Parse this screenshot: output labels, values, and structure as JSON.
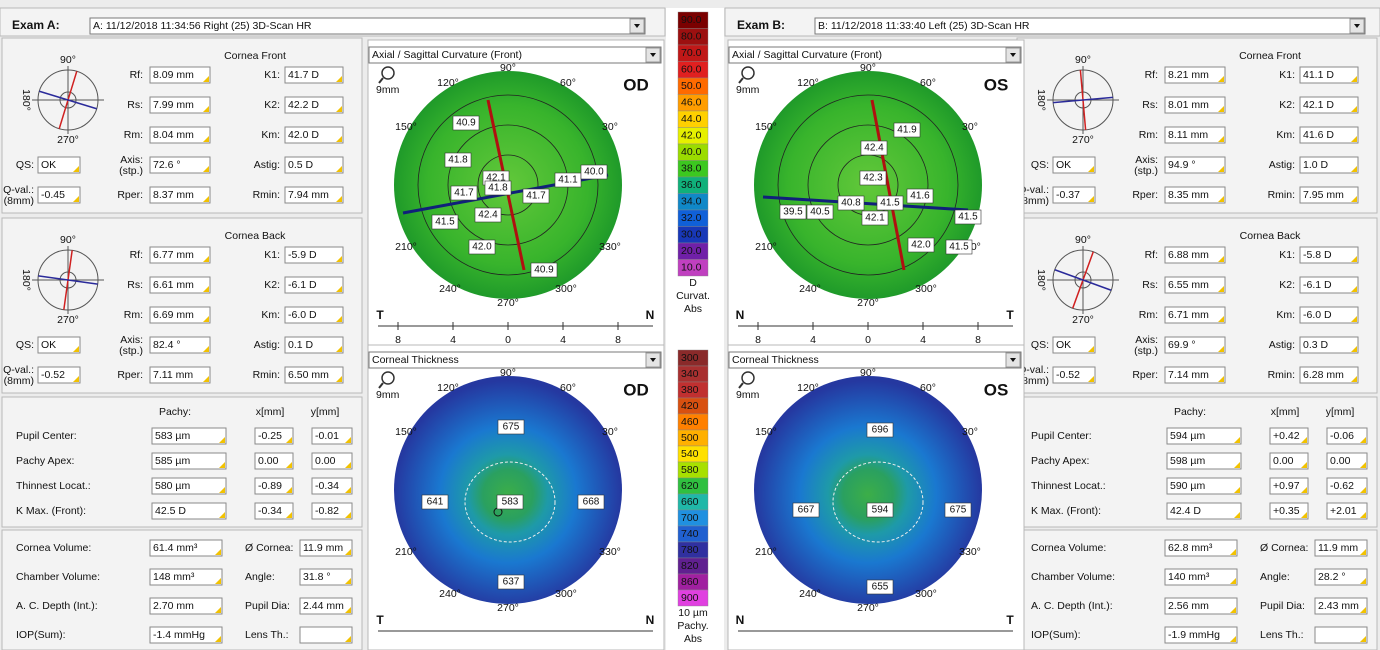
{
  "colorbar": {
    "curvature": {
      "labels": [
        "90.0",
        "80.0",
        "70.0",
        "60.0",
        "50.0",
        "46.0",
        "44.0",
        "42.0",
        "40.0",
        "38.0",
        "36.0",
        "34.0",
        "32.0",
        "30.0",
        "20.0",
        "10.0"
      ],
      "colors": [
        "#7a0000",
        "#9c1010",
        "#c01818",
        "#e02020",
        "#ff6a00",
        "#ff9d00",
        "#ffd000",
        "#e6f000",
        "#9bdc00",
        "#3cc820",
        "#10b07a",
        "#1088c8",
        "#1060d8",
        "#1838b8",
        "#7020a8",
        "#c040c0"
      ],
      "unit": "D",
      "name": "Curvat.",
      "mode": "Abs"
    },
    "thickness": {
      "labels": [
        "300",
        "340",
        "380",
        "420",
        "460",
        "500",
        "540",
        "580",
        "620",
        "660",
        "700",
        "740",
        "780",
        "820",
        "860",
        "900"
      ],
      "colors": [
        "#8a2a2a",
        "#a83030",
        "#c03030",
        "#d85010",
        "#ff8000",
        "#ffb000",
        "#ffe000",
        "#a8e000",
        "#30c040",
        "#20b8a8",
        "#2090e0",
        "#2060d0",
        "#3030a0",
        "#602090",
        "#a020a0",
        "#e040e0"
      ],
      "unit": "10 µm",
      "name": "Pachy.",
      "mode": "Abs"
    }
  },
  "exams": [
    {
      "label": "Exam A:",
      "select": "A: 11/12/2018 11:34:56  Right  (25) 3D-Scan HR",
      "front": {
        "title": "Cornea Front",
        "compass": [
          "90°",
          "180°",
          "270°"
        ],
        "fields": [
          {
            "label": "Rf:",
            "value": "8.09 mm",
            "color": "#2c2c9c"
          },
          {
            "label": "K1:",
            "value": "41.7 D",
            "color": "#2c2c9c"
          },
          {
            "label": "Rs:",
            "value": "7.99 mm",
            "color": "#c01818"
          },
          {
            "label": "K2:",
            "value": "42.2 D",
            "color": "#c01818"
          },
          {
            "label": "Rm:",
            "value": "8.04 mm",
            "color": "#111111"
          },
          {
            "label": "Km:",
            "value": "42.0 D",
            "color": "#111111"
          },
          {
            "label": "QS:",
            "value": "OK",
            "color": "#111111"
          },
          {
            "label": "Axis:",
            "sub": "(stp.)",
            "value": "72.6 °",
            "color": "#c01818"
          },
          {
            "label": "Astig:",
            "value": "0.5 D",
            "color": "#111111"
          },
          {
            "label": "Q-val.:",
            "sub": "(8mm)",
            "value": "-0.45",
            "color": "#111111"
          },
          {
            "label": "Rper:",
            "value": "8.37 mm",
            "color": "#111111"
          },
          {
            "label": "Rmin:",
            "value": "7.94 mm",
            "color": "#111111"
          }
        ]
      },
      "back": {
        "title": "Cornea Back",
        "compass": [
          "90°",
          "180°",
          "270°"
        ],
        "fields": [
          {
            "label": "Rf:",
            "value": "6.77 mm",
            "color": "#2c2c9c"
          },
          {
            "label": "K1:",
            "value": "-5.9 D",
            "color": "#2c2c9c"
          },
          {
            "label": "Rs:",
            "value": "6.61 mm",
            "color": "#c01818"
          },
          {
            "label": "K2:",
            "value": "-6.1 D",
            "color": "#c01818"
          },
          {
            "label": "Rm:",
            "value": "6.69 mm",
            "color": "#111111"
          },
          {
            "label": "Km:",
            "value": "-6.0 D",
            "color": "#111111"
          },
          {
            "label": "QS:",
            "value": "OK",
            "color": "#111111"
          },
          {
            "label": "Axis:",
            "sub": "(stp.)",
            "value": "82.4 °",
            "color": "#c01818"
          },
          {
            "label": "Astig:",
            "value": "0.1 D",
            "color": "#111111"
          },
          {
            "label": "Q-val.:",
            "sub": "(8mm)",
            "value": "-0.52",
            "color": "#111111"
          },
          {
            "label": "Rper:",
            "value": "7.11 mm",
            "color": "#111111"
          },
          {
            "label": "Rmin:",
            "value": "6.50 mm",
            "color": "#111111"
          }
        ]
      },
      "pachy": {
        "headers": [
          "Pachy:",
          "x[mm]",
          "y[mm]"
        ],
        "rows": [
          [
            "Pupil Center:",
            "583 µm",
            "-0.25",
            "-0.01"
          ],
          [
            "Pachy Apex:",
            "585 µm",
            "0.00",
            "0.00"
          ],
          [
            "Thinnest Locat.:",
            "580 µm",
            "-0.89",
            "-0.34"
          ],
          [
            "K Max. (Front):",
            "42.5 D",
            "-0.34",
            "-0.82"
          ]
        ]
      },
      "volume": [
        [
          {
            "label": "Cornea Volume:",
            "value": "61.4 mm³"
          },
          {
            "label": "Ø Cornea:",
            "value": "11.9 mm"
          }
        ],
        [
          {
            "label": "Chamber Volume:",
            "value": "148 mm³"
          },
          {
            "label": "Angle:",
            "value": "31.8 °"
          }
        ],
        [
          {
            "label": "A. C. Depth (Int.):",
            "value": "2.70 mm"
          },
          {
            "label": "Pupil Dia:",
            "value": "2.44 mm"
          }
        ],
        [
          {
            "label": "IOP(Sum):",
            "value": "-1.4 mmHg"
          },
          {
            "label": "Lens Th.:"
          }
        ]
      ],
      "maps": [
        {
          "kind": "curvature",
          "select": "Axial / Sagittal Curvature (Front)",
          "eye": "OD",
          "zoom": "9mm",
          "angles": [
            "90°",
            "120°",
            "60°",
            "150°",
            "30°",
            "210°",
            "330°",
            "240°",
            "300°",
            "270°"
          ],
          "left": "T",
          "right": "N",
          "scale": [
            "8",
            "4",
            "0",
            "4",
            "8"
          ],
          "values": [
            "40.9",
            "41.8",
            "42.1",
            "41.1",
            "40.0",
            "41.7",
            "41.8",
            "41.7",
            "41.5",
            "42.4",
            "42.0",
            "40.9"
          ]
        },
        {
          "kind": "thickness",
          "select": "Corneal Thickness",
          "eye": "OD",
          "zoom": "9mm",
          "angles": [
            "90°",
            "120°",
            "60°",
            "150°",
            "30°",
            "210°",
            "330°",
            "240°",
            "300°",
            "270°"
          ],
          "left": "T",
          "right": "N",
          "values": [
            "675",
            "641",
            "583",
            "668",
            "637"
          ]
        }
      ]
    },
    {
      "label": "Exam B:",
      "select": "B: 11/12/2018 11:33:40  Left  (25) 3D-Scan HR",
      "front": {
        "title": "Cornea Front",
        "compass": [
          "90°",
          "180°",
          "270°"
        ],
        "fields": [
          {
            "label": "Rf:",
            "value": "8.21 mm",
            "color": "#2c2c9c"
          },
          {
            "label": "K1:",
            "value": "41.1 D",
            "color": "#2c2c9c"
          },
          {
            "label": "Rs:",
            "value": "8.01 mm",
            "color": "#c01818"
          },
          {
            "label": "K2:",
            "value": "42.1 D",
            "color": "#c01818"
          },
          {
            "label": "Rm:",
            "value": "8.11 mm",
            "color": "#111111"
          },
          {
            "label": "Km:",
            "value": "41.6 D",
            "color": "#111111"
          },
          {
            "label": "QS:",
            "value": "OK",
            "color": "#111111"
          },
          {
            "label": "Axis:",
            "sub": "(stp.)",
            "value": "94.9 °",
            "color": "#c01818"
          },
          {
            "label": "Astig:",
            "value": "1.0 D",
            "color": "#111111"
          },
          {
            "label": "Q-val.:",
            "sub": "(8mm)",
            "value": "-0.37",
            "color": "#111111"
          },
          {
            "label": "Rper:",
            "value": "8.35 mm",
            "color": "#111111"
          },
          {
            "label": "Rmin:",
            "value": "7.95 mm",
            "color": "#111111"
          }
        ]
      },
      "back": {
        "title": "Cornea Back",
        "compass": [
          "90°",
          "180°",
          "270°"
        ],
        "fields": [
          {
            "label": "Rf:",
            "value": "6.88 mm",
            "color": "#2c2c9c"
          },
          {
            "label": "K1:",
            "value": "-5.8 D",
            "color": "#2c2c9c"
          },
          {
            "label": "Rs:",
            "value": "6.55 mm",
            "color": "#c01818"
          },
          {
            "label": "K2:",
            "value": "-6.1 D",
            "color": "#c01818"
          },
          {
            "label": "Rm:",
            "value": "6.71 mm",
            "color": "#111111"
          },
          {
            "label": "Km:",
            "value": "-6.0 D",
            "color": "#111111"
          },
          {
            "label": "QS:",
            "value": "OK",
            "color": "#111111"
          },
          {
            "label": "Axis:",
            "sub": "(stp.)",
            "value": "69.9 °",
            "color": "#c01818"
          },
          {
            "label": "Astig:",
            "value": "0.3 D",
            "color": "#111111"
          },
          {
            "label": "Q-val.:",
            "sub": "(8mm)",
            "value": "-0.52",
            "color": "#111111"
          },
          {
            "label": "Rper:",
            "value": "7.14 mm",
            "color": "#111111"
          },
          {
            "label": "Rmin:",
            "value": "6.28 mm",
            "color": "#111111"
          }
        ]
      },
      "pachy": {
        "headers": [
          "Pachy:",
          "x[mm]",
          "y[mm]"
        ],
        "rows": [
          [
            "Pupil Center:",
            "594 µm",
            "+0.42",
            "-0.06"
          ],
          [
            "Pachy Apex:",
            "598 µm",
            "0.00",
            "0.00"
          ],
          [
            "Thinnest Locat.:",
            "590 µm",
            "+0.97",
            "-0.62"
          ],
          [
            "K Max. (Front):",
            "42.4 D",
            "+0.35",
            "+2.01"
          ]
        ]
      },
      "volume": [
        [
          {
            "label": "Cornea Volume:",
            "value": "62.8 mm³"
          },
          {
            "label": "Ø Cornea:",
            "value": "11.9 mm"
          }
        ],
        [
          {
            "label": "Chamber Volume:",
            "value": "140 mm³"
          },
          {
            "label": "Angle:",
            "value": "28.2 °"
          }
        ],
        [
          {
            "label": "A. C. Depth (Int.):",
            "value": "2.56 mm"
          },
          {
            "label": "Pupil Dia:",
            "value": "2.43 mm"
          }
        ],
        [
          {
            "label": "IOP(Sum):",
            "value": "-1.9 mmHg"
          },
          {
            "label": "Lens Th.:"
          }
        ]
      ],
      "maps": [
        {
          "kind": "curvature",
          "select": "Axial / Sagittal Curvature (Front)",
          "eye": "OS",
          "zoom": "9mm",
          "angles": [
            "90°",
            "120°",
            "60°",
            "150°",
            "30°",
            "210°",
            "330°",
            "240°",
            "300°",
            "270°"
          ],
          "left": "N",
          "right": "T",
          "scale": [
            "8",
            "4",
            "0",
            "4",
            "8"
          ],
          "values": [
            "41.9",
            "42.4",
            "42.3",
            "39.5",
            "40.5",
            "40.8",
            "41.5",
            "41.6",
            "41.5",
            "42.1",
            "42.0",
            "41.5"
          ]
        },
        {
          "kind": "thickness",
          "select": "Corneal Thickness",
          "eye": "OS",
          "zoom": "9mm",
          "angles": [
            "90°",
            "120°",
            "60°",
            "150°",
            "30°",
            "210°",
            "330°",
            "240°",
            "300°",
            "270°"
          ],
          "left": "N",
          "right": "T",
          "values": [
            "696",
            "667",
            "594",
            "675",
            "655"
          ]
        }
      ]
    }
  ]
}
